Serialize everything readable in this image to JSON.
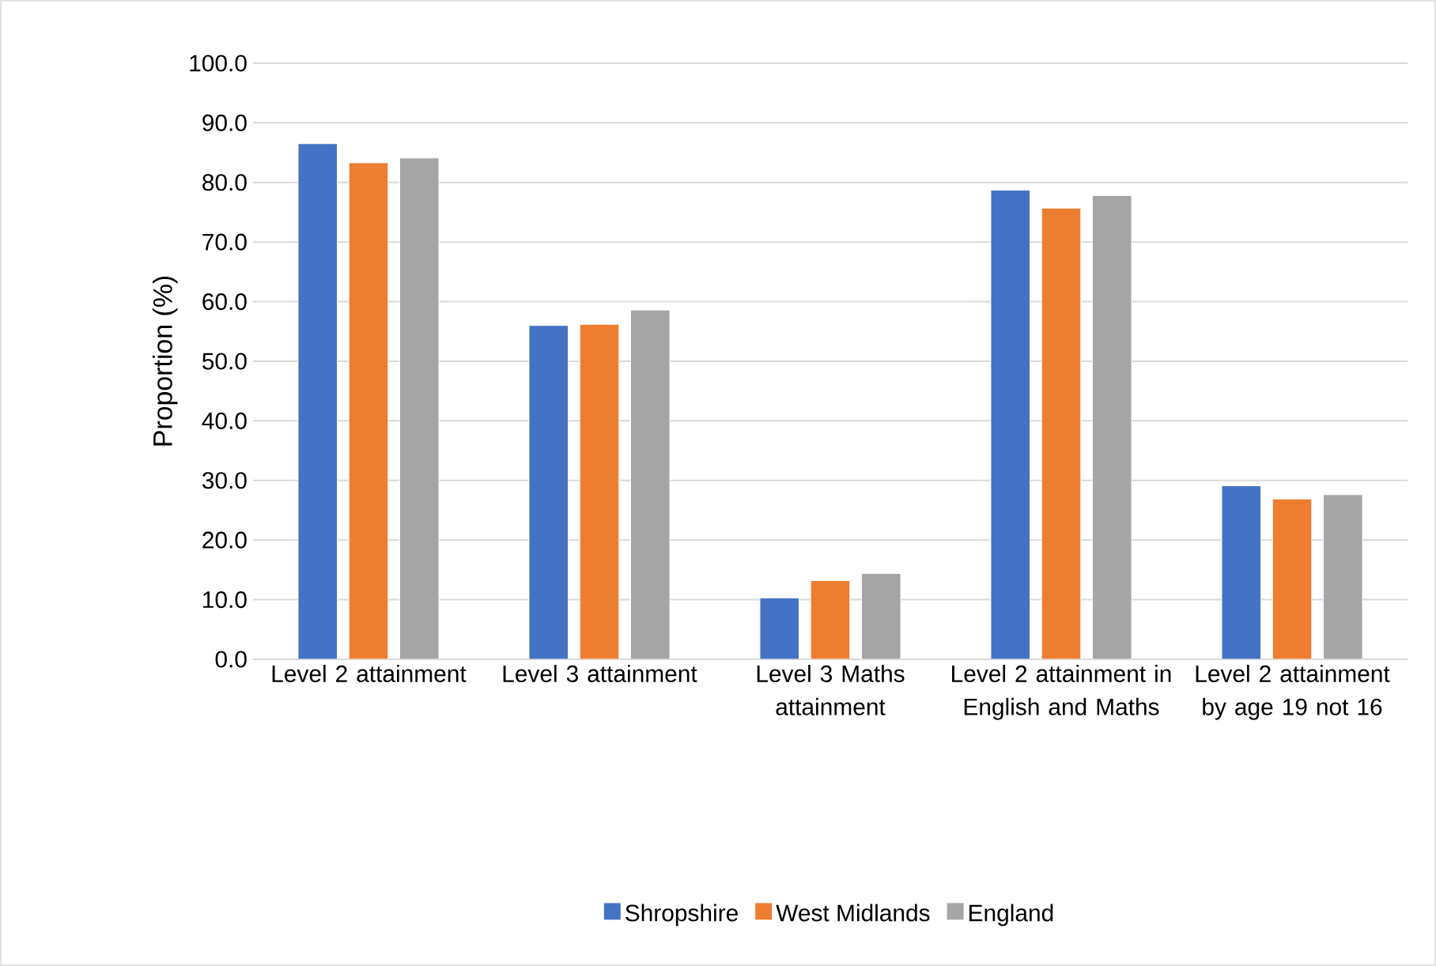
{
  "chart_data": {
    "type": "bar",
    "ylabel": "Proportion (%)",
    "categories": [
      "Level 2 attainment",
      "Level 3 attainment",
      "Level 3 Maths attainment",
      "Level 2 attainment in English and Maths",
      "Level 2 attainment by age 19 not 16"
    ],
    "series": [
      {
        "name": "Shropshire",
        "color": "#4472c4",
        "values": [
          86.5,
          56.0,
          10.3,
          78.7,
          29.1
        ]
      },
      {
        "name": "West Midlands",
        "color": "#ed7d31",
        "values": [
          83.3,
          56.2,
          13.2,
          75.7,
          26.9
        ]
      },
      {
        "name": "England",
        "color": "#a5a5a5",
        "values": [
          84.1,
          58.6,
          14.4,
          77.8,
          27.6
        ]
      }
    ],
    "ylim": [
      0,
      100
    ],
    "yticks": [
      {
        "value": 0,
        "label": "0.0"
      },
      {
        "value": 10,
        "label": "10.0"
      },
      {
        "value": 20,
        "label": "20.0"
      },
      {
        "value": 30,
        "label": "30.0"
      },
      {
        "value": 40,
        "label": "40.0"
      },
      {
        "value": 50,
        "label": "50.0"
      },
      {
        "value": 60,
        "label": "60.0"
      },
      {
        "value": 70,
        "label": "70.0"
      },
      {
        "value": 80,
        "label": "80.0"
      },
      {
        "value": 90,
        "label": "90.0"
      },
      {
        "value": 100,
        "label": "100.0"
      }
    ],
    "grid": "y",
    "legend": "bottom"
  }
}
